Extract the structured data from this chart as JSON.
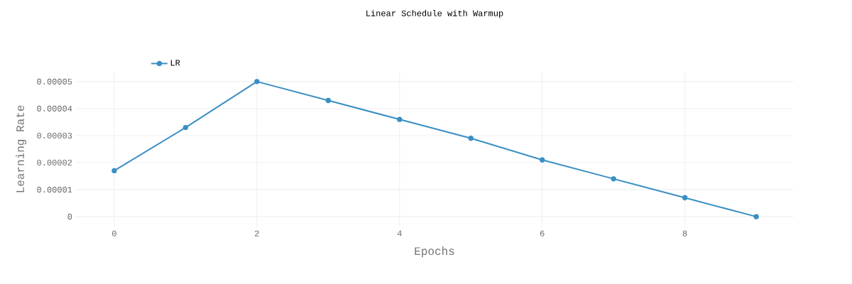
{
  "chart_data": {
    "type": "line",
    "title": "Linear Schedule with Warmup",
    "xlabel": "Epochs",
    "ylabel": "Learning Rate",
    "x": [
      0,
      1,
      2,
      3,
      4,
      5,
      6,
      7,
      8,
      9
    ],
    "series": [
      {
        "name": "LR",
        "color": "#3a8fc4",
        "values": [
          1.7e-05,
          3.3e-05,
          5e-05,
          4.3e-05,
          3.6e-05,
          2.9e-05,
          2.1e-05,
          1.4e-05,
          7e-06,
          0
        ]
      }
    ],
    "xlim": [
      -0.54,
      9.52
    ],
    "ylim": [
      -3.9e-06,
      5.39e-05
    ],
    "xticks": [
      0,
      2,
      4,
      6,
      8
    ],
    "yticks": [
      0,
      {
        "value": 1e-05,
        "label": "0.00001"
      },
      {
        "value": 2e-05,
        "label": "0.00002"
      },
      {
        "value": 3e-05,
        "label": "0.00003"
      },
      {
        "value": 4e-05,
        "label": "0.00004"
      },
      {
        "value": 5e-05,
        "label": "0.00005"
      }
    ],
    "grid": true,
    "legend": "top left",
    "marker": "circle",
    "line_style": "solid"
  }
}
